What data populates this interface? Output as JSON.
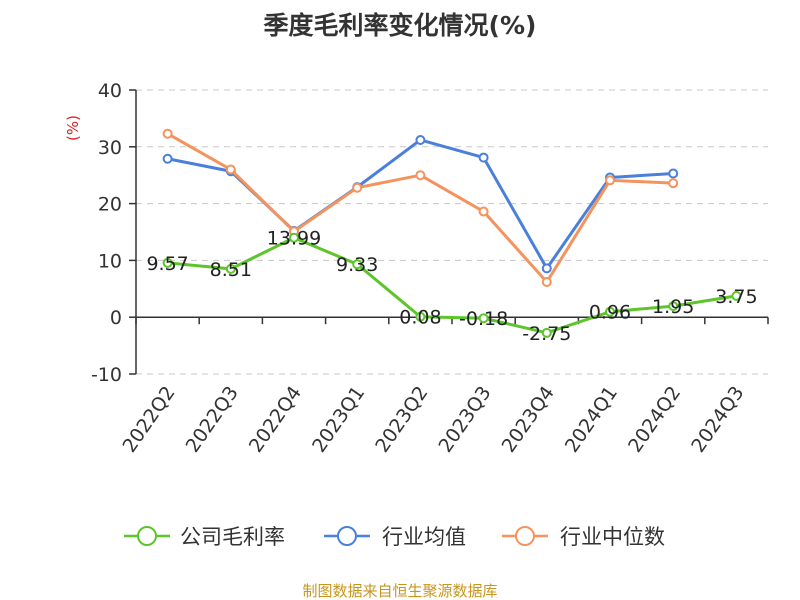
{
  "chart_data": {
    "type": "line",
    "title": "季度毛利率变化情况(%)",
    "unit_label": "(%)",
    "source": "制图数据来自恒生聚源数据库",
    "categories": [
      "2022Q2",
      "2022Q3",
      "2022Q4",
      "2023Q1",
      "2023Q2",
      "2023Q3",
      "2023Q4",
      "2024Q1",
      "2024Q2",
      "2024Q3"
    ],
    "ylim": [
      -10,
      40
    ],
    "yticks": [
      "-10",
      "0",
      "10",
      "20",
      "30",
      "40"
    ],
    "grid": true,
    "legend_position": "bottom",
    "series": [
      {
        "name": "公司毛利率",
        "color": "#5cc52b",
        "values": [
          9.57,
          8.51,
          13.99,
          9.33,
          0.08,
          -0.18,
          -2.75,
          0.96,
          1.95,
          3.75
        ],
        "labels": [
          "9.57",
          "8.51",
          "13.99",
          "9.33",
          "0.08",
          "-0.18",
          "-2.75",
          "0.96",
          "1.95",
          "3.75"
        ]
      },
      {
        "name": "行业均值",
        "color": "#4a7fdb",
        "values": [
          27.9,
          25.7,
          15.2,
          22.9,
          31.2,
          28.1,
          8.6,
          24.6,
          25.3,
          null
        ]
      },
      {
        "name": "行业中位数",
        "color": "#f4935e",
        "values": [
          32.3,
          26.0,
          15.1,
          22.8,
          25.0,
          18.6,
          6.2,
          24.1,
          23.6,
          null
        ]
      }
    ]
  }
}
